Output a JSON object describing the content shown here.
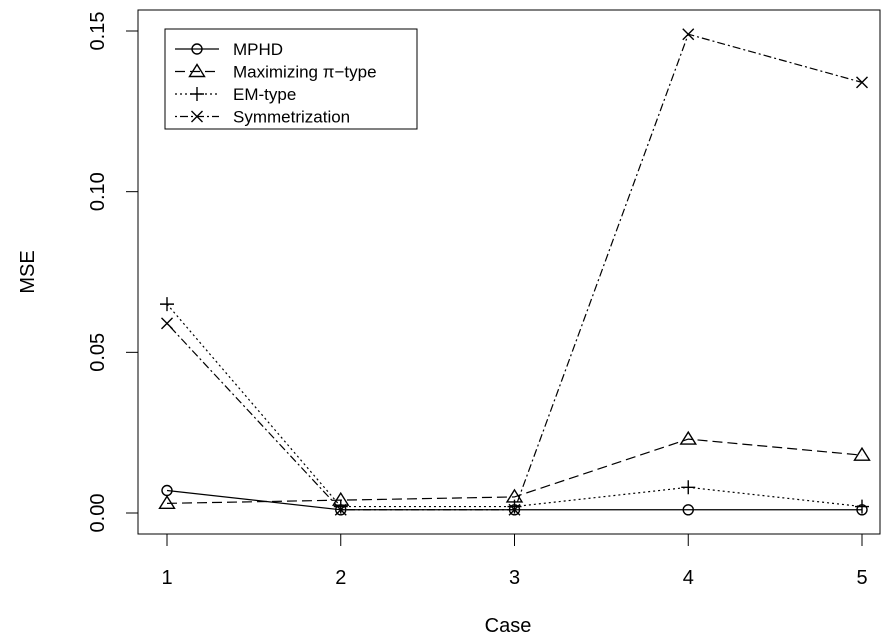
{
  "chart_data": {
    "type": "line",
    "title": "",
    "xlabel": "Case",
    "ylabel": "MSE",
    "x": [
      1,
      2,
      3,
      4,
      5
    ],
    "x_ticks": [
      "1",
      "2",
      "3",
      "4",
      "5"
    ],
    "y_ticks": [
      "0.00",
      "0.05",
      "0.10",
      "0.15"
    ],
    "xlim": [
      1,
      5
    ],
    "ylim": [
      0,
      0.15
    ],
    "grid": false,
    "legend_position": "top-left",
    "series": [
      {
        "name": "MPHD",
        "marker": "circle",
        "line_style": "solid",
        "values": [
          0.007,
          0.001,
          0.001,
          0.001,
          0.001
        ]
      },
      {
        "name": "Maximizing π−type",
        "marker": "triangle",
        "line_style": "dashed",
        "values": [
          0.003,
          0.004,
          0.005,
          0.023,
          0.018
        ]
      },
      {
        "name": "EM-type",
        "marker": "plus",
        "line_style": "dotted",
        "values": [
          0.065,
          0.002,
          0.002,
          0.008,
          0.002
        ]
      },
      {
        "name": "Symmetrization",
        "marker": "cross",
        "line_style": "dotdash",
        "values": [
          0.059,
          0.001,
          0.001,
          0.149,
          0.134
        ]
      }
    ]
  }
}
